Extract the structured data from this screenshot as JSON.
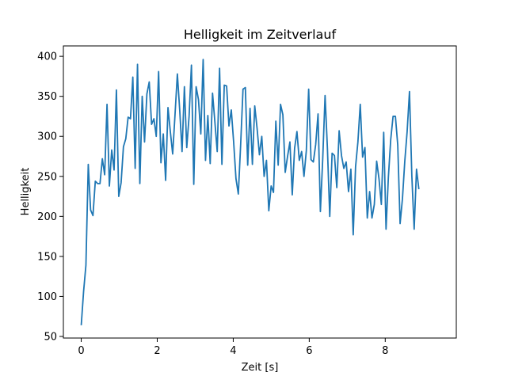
{
  "chart_data": {
    "type": "line",
    "title": "Helligkeit im Zeitverlauf",
    "xlabel": "Zeit [s]",
    "ylabel": "Helligkeit",
    "xlim": [
      -0.47,
      9.87
    ],
    "ylim": [
      48,
      413
    ],
    "x_ticks": [
      0,
      2,
      4,
      6,
      8
    ],
    "x_tick_labels": [
      "0",
      "2",
      "4",
      "6",
      "8"
    ],
    "y_ticks": [
      50,
      100,
      150,
      200,
      250,
      300,
      350,
      400
    ],
    "y_tick_labels": [
      "50",
      "100",
      "150",
      "200",
      "250",
      "300",
      "350",
      "400"
    ],
    "grid": false,
    "line_color": "#1f77b4",
    "series": [
      {
        "x_start": 0,
        "x_step": 0.0617,
        "values": [
          64,
          106,
          139,
          265,
          208,
          201,
          244,
          241,
          241,
          272,
          252,
          340,
          238,
          283,
          258,
          358,
          225,
          242,
          287,
          297,
          324,
          322,
          374,
          260,
          390,
          241,
          350,
          293,
          353,
          368,
          315,
          322,
          300,
          381,
          267,
          303,
          245,
          336,
          306,
          278,
          327,
          378,
          333,
          281,
          362,
          286,
          325,
          389,
          240,
          362,
          346,
          303,
          396,
          270,
          326,
          266,
          354,
          318,
          281,
          385,
          265,
          364,
          363,
          313,
          333,
          293,
          247,
          228,
          290,
          359,
          361,
          264,
          335,
          265,
          338,
          310,
          277,
          300,
          250,
          270,
          207,
          238,
          230,
          319,
          264,
          340,
          327,
          255,
          275,
          293,
          227,
          285,
          306,
          270,
          281,
          250,
          282,
          359,
          271,
          268,
          290,
          328,
          206,
          272,
          351,
          285,
          200,
          279,
          276,
          236,
          307,
          276,
          260,
          268,
          231,
          259,
          177,
          262,
          293,
          340,
          274,
          286,
          198,
          231,
          198,
          215,
          269,
          247,
          215,
          305,
          184,
          249,
          296,
          325,
          325,
          289,
          191,
          222,
          269,
          306,
          356,
          251,
          184,
          259,
          234
        ]
      }
    ]
  }
}
